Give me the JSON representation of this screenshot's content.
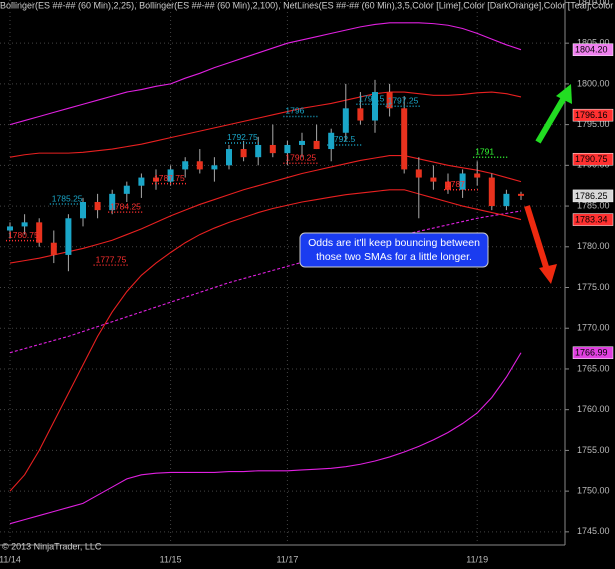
{
  "chart_data": {
    "type": "candlestick",
    "title": "Bollinger(ES ##-## (60 Min),2,25), Bollinger(ES ##-## (60 Min),2,100), NetLines(ES ##-## (60 Min),3,5,Color [Lime],Color [DarkOrange],Color [Teal],Color [Re",
    "copyright": "© 2013 NinjaTrader, LLC",
    "annotation": [
      "Odds are it'll keep bouncing between",
      "those two SMAs for a little longer."
    ],
    "categories": [
      "11/14",
      null,
      null,
      null,
      null,
      null,
      null,
      null,
      null,
      null,
      null,
      "11/15",
      null,
      null,
      null,
      null,
      null,
      null,
      null,
      "11/17",
      null,
      null,
      null,
      null,
      null,
      null,
      null,
      null,
      null,
      null,
      null,
      null,
      "11/19",
      null,
      null,
      null
    ],
    "open": [
      1782,
      1782.5,
      1783,
      1780.5,
      1779,
      1783.5,
      1785.5,
      1784.5,
      1786.5,
      1787.5,
      1788.5,
      1788,
      1789.5,
      1790.5,
      1789.5,
      1790,
      1792,
      1791,
      1792.5,
      1791.5,
      1792.5,
      1793,
      1792,
      1794,
      1797,
      1795.5,
      1799,
      1797,
      1789.5,
      1788.5,
      1788,
      1787,
      1789,
      1788.5,
      1785,
      1786.5
    ],
    "high": [
      1783,
      1784,
      1783.5,
      1782,
      1784,
      1786,
      1786.5,
      1787,
      1788,
      1789,
      1789.5,
      1790,
      1791,
      1792,
      1791,
      1792.5,
      1793,
      1793.5,
      1795,
      1793,
      1794,
      1795,
      1794.5,
      1800,
      1799,
      1800.5,
      1800,
      1798.5,
      1791,
      1790,
      1789,
      1789.5,
      1790.5,
      1789,
      1787,
      1786.75
    ],
    "low": [
      1781,
      1781.5,
      1780,
      1778,
      1777,
      1782.5,
      1783.5,
      1784,
      1785.5,
      1786,
      1787,
      1787.5,
      1788.5,
      1789,
      1788,
      1789.5,
      1790.5,
      1790,
      1791,
      1790,
      1791,
      1792,
      1790.5,
      1793,
      1795,
      1794,
      1796,
      1789,
      1783.5,
      1787,
      1786.5,
      1786,
      1787.5,
      1784.5,
      1784.5,
      1785.75
    ],
    "close": [
      1782.5,
      1783,
      1780.5,
      1779,
      1783.5,
      1785.5,
      1784.5,
      1786.5,
      1787.5,
      1788.5,
      1788,
      1789.5,
      1790.5,
      1789.5,
      1790,
      1792,
      1791,
      1792.5,
      1791.5,
      1792.5,
      1793,
      1792,
      1794,
      1797,
      1795.5,
      1799,
      1797,
      1789.5,
      1788.5,
      1788,
      1787,
      1789,
      1788.5,
      1785,
      1786.5,
      1786.25
    ],
    "up_color": "#1aa6c8",
    "down_color": "#e8321e",
    "lines": [
      {
        "color": "#e020e0",
        "dashed": false,
        "values": [
          1795,
          1795.5,
          1796,
          1796.5,
          1797,
          1797.5,
          1798,
          1798.5,
          1799,
          1799.3,
          1799.7,
          1800,
          1800.7,
          1801.3,
          1802,
          1802.6,
          1803.2,
          1803.8,
          1804.4,
          1805,
          1805.4,
          1805.8,
          1806.2,
          1806.6,
          1807,
          1807.3,
          1807.5,
          1807.5,
          1807.5,
          1807.4,
          1807.2,
          1806.8,
          1806.2,
          1805.5,
          1804.8,
          1804.2
        ]
      },
      {
        "color": "#e020e0",
        "dashed": true,
        "values": [
          1767,
          1767.5,
          1768,
          1768.5,
          1769,
          1769.6,
          1770.2,
          1770.8,
          1771.4,
          1772,
          1772.6,
          1773.2,
          1773.8,
          1774.4,
          1775,
          1775.6,
          1776.1,
          1776.6,
          1777.1,
          1777.6,
          1778.1,
          1778.6,
          1779.1,
          1779.6,
          1780.1,
          1780.6,
          1781.1,
          1781.5,
          1781.9,
          1782.3,
          1782.7,
          1783.1,
          1783.5,
          1783.8,
          1784.1,
          1784.4
        ]
      },
      {
        "color": "#e020e0",
        "dashed": false,
        "values": [
          1746,
          1746.5,
          1747,
          1747.5,
          1748,
          1748.5,
          1749.5,
          1750.5,
          1751.5,
          1752,
          1752.2,
          1752.3,
          1752.3,
          1752.3,
          1752.3,
          1752.4,
          1752.4,
          1752.5,
          1752.5,
          1752.5,
          1752.6,
          1752.7,
          1752.8,
          1753,
          1753.3,
          1753.7,
          1754.2,
          1754.8,
          1755.5,
          1756.3,
          1757.2,
          1758.3,
          1759.6,
          1761.5,
          1764,
          1766.99
        ]
      },
      {
        "color": "#e82020",
        "dashed": false,
        "values": [
          1791,
          1791.3,
          1791.5,
          1791.5,
          1791.5,
          1791.6,
          1791.8,
          1792,
          1792.3,
          1792.6,
          1793,
          1793.4,
          1793.8,
          1794.2,
          1794.6,
          1795,
          1795.4,
          1795.8,
          1796.2,
          1796.6,
          1797,
          1797.3,
          1797.6,
          1798,
          1798.4,
          1798.8,
          1799,
          1799,
          1798.8,
          1798.6,
          1798.6,
          1798.7,
          1798.9,
          1799,
          1798.8,
          1798.4
        ]
      },
      {
        "color": "#e82020",
        "dashed": false,
        "values": [
          1778,
          1778.3,
          1778.6,
          1779,
          1779.4,
          1779.8,
          1780.3,
          1780.8,
          1781.5,
          1782.2,
          1783,
          1783.8,
          1784.5,
          1785.2,
          1785.8,
          1786.4,
          1787,
          1787.5,
          1788,
          1788.5,
          1789,
          1789.4,
          1789.8,
          1790.2,
          1790.6,
          1790.9,
          1791.2,
          1791.2,
          1790.8,
          1790.4,
          1790,
          1789.7,
          1789.4,
          1789,
          1788.5,
          1788
        ]
      },
      {
        "color": "#e82020",
        "dashed": false,
        "values": [
          1750,
          1752,
          1755,
          1758.5,
          1762,
          1765.5,
          1769,
          1772,
          1774.5,
          1776.5,
          1778,
          1779.3,
          1780.5,
          1781.5,
          1782.3,
          1783,
          1783.6,
          1784.2,
          1784.7,
          1785.1,
          1785.5,
          1785.8,
          1786.1,
          1786.4,
          1786.6,
          1786.8,
          1787,
          1787,
          1786.5,
          1786,
          1785.5,
          1785,
          1784.6,
          1784.2,
          1783.8,
          1783.34
        ]
      }
    ],
    "levels": [
      {
        "value": 1780.75,
        "color": "#ff3030"
      },
      {
        "value": 1785.25,
        "color": "#1aa6c8"
      },
      {
        "value": 1777.75,
        "color": "#ff3030"
      },
      {
        "value": 1784.25,
        "color": "#ff3030"
      },
      {
        "value": 1787.75,
        "color": "#ff3030"
      },
      {
        "value": 1792.75,
        "color": "#1aa6c8"
      },
      {
        "value": 1796,
        "color": "#1aa6c8"
      },
      {
        "value": 1790.25,
        "color": "#ff3030"
      },
      {
        "value": 1792.5,
        "color": "#1aa6c8"
      },
      {
        "value": 1797.5,
        "color": "#1aa6c8"
      },
      {
        "value": 1797.25,
        "color": "#1aa6c8"
      },
      {
        "value": 1787,
        "color": "#ff3030"
      },
      {
        "value": 1791,
        "color": "#33ff33"
      }
    ],
    "price_markers": [
      {
        "value": 1804.2,
        "label": "1804.20",
        "color": "#f080f0"
      },
      {
        "value": 1796.16,
        "label": "1796.16",
        "color": "#ff3030"
      },
      {
        "value": 1790.75,
        "label": "1790.75",
        "color": "#ff3030"
      },
      {
        "value": 1786.25,
        "label": "1786.25",
        "color": "#d8d8d8"
      },
      {
        "value": 1783.34,
        "label": "1783.34",
        "color": "#ff3030"
      },
      {
        "value": 1766.99,
        "label": "1766.99",
        "color": "#e040e0"
      }
    ],
    "ylim": [
      1744,
      1810.3
    ],
    "yticks": [
      {
        "value": 1745,
        "label": "1745.00"
      },
      {
        "value": 1750,
        "label": "1750.00"
      },
      {
        "value": 1755,
        "label": "1755.00"
      },
      {
        "value": 1760,
        "label": "1760.00"
      },
      {
        "value": 1765,
        "label": "1765.00"
      },
      {
        "value": 1770,
        "label": "1770.00"
      },
      {
        "value": 1775,
        "label": "1775.00"
      },
      {
        "value": 1780,
        "label": "1780.00"
      },
      {
        "value": 1785,
        "label": "1785.00"
      },
      {
        "value": 1790,
        "label": "1790.00"
      },
      {
        "value": 1795,
        "label": "1795.00"
      },
      {
        "value": 1800,
        "label": "1800.00"
      },
      {
        "value": 1805,
        "label": "1805.00"
      },
      {
        "value": 1810,
        "label": "1810.00"
      }
    ],
    "grid": true
  }
}
